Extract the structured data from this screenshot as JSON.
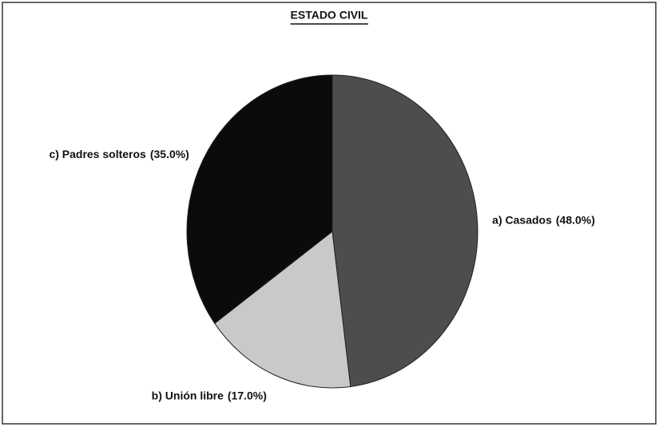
{
  "chart_data": {
    "type": "pie",
    "title": "ESTADO CIVIL",
    "categories": [
      "a) Casados",
      "b) Unión libre",
      "c) Padres solteros"
    ],
    "values": [
      48,
      17,
      35
    ],
    "value_labels": [
      "(48.0%)",
      "(17.0%)",
      "(35.0%)"
    ],
    "colors": [
      "#4d4d4d",
      "#c9c9c9",
      "#0b0b0b"
    ]
  }
}
